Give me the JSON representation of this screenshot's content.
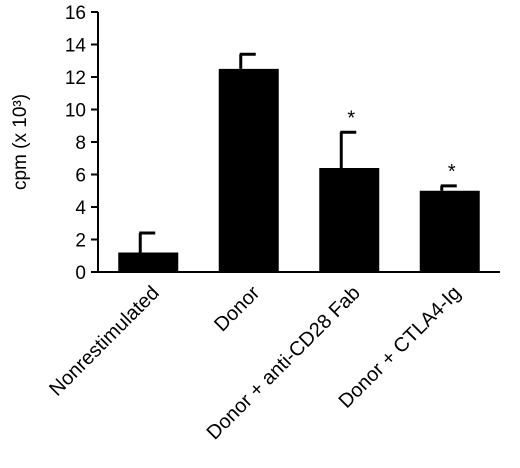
{
  "chart_data": {
    "type": "bar",
    "title": "",
    "xlabel": "",
    "ylabel": "cpm (x 10³)",
    "ylim": [
      0,
      16
    ],
    "yticks": [
      0,
      2,
      4,
      6,
      8,
      10,
      12,
      14,
      16
    ],
    "categories": [
      "Nonrestimulated",
      "Donor",
      "Donor + anti-CD28 Fab",
      "Donor + CTLA4-Ig"
    ],
    "values": [
      1.2,
      12.5,
      6.4,
      5.0
    ],
    "error_upper": [
      1.2,
      0.9,
      2.2,
      0.3
    ],
    "significance": [
      "",
      "",
      "*",
      "*"
    ],
    "grid": false,
    "legend": "none",
    "bar_color": "#000000"
  }
}
